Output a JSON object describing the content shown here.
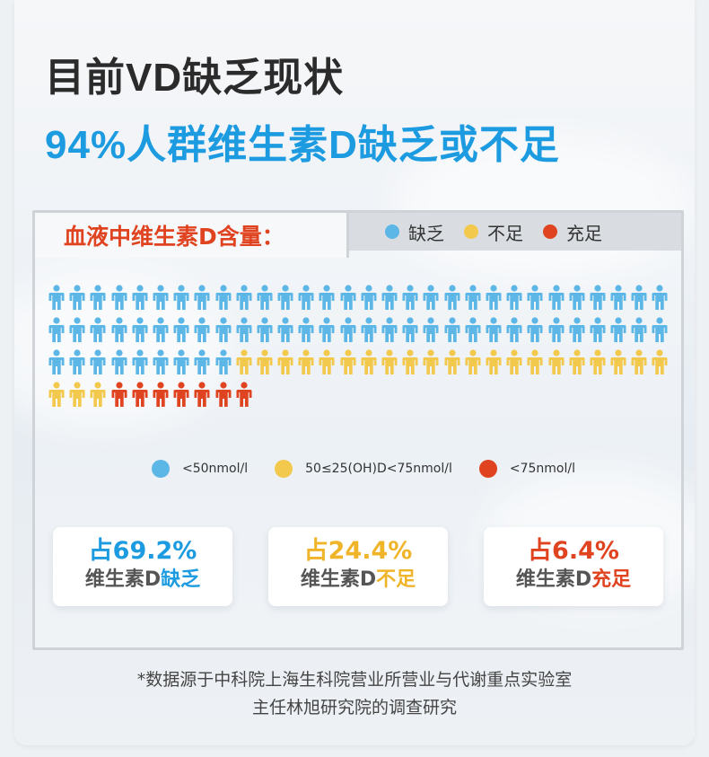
{
  "title": "目前VD缺乏现状",
  "subtitle": "94%人群维生素D缺乏或不足",
  "panel": {
    "heading": "血液中维生素D含量：",
    "legend": [
      {
        "label": "缺乏",
        "color": "#5cb6e6"
      },
      {
        "label": "不足",
        "color": "#f2c94c"
      },
      {
        "label": "充足",
        "color": "#e0431f"
      }
    ],
    "people": {
      "deficient": 69,
      "insufficient": 24,
      "sufficient": 7
    },
    "range_legend": [
      {
        "label": "<50nmol/l",
        "color": "#5cb6e6"
      },
      {
        "label": "50≤25(OH)D<75nmol/l",
        "color": "#f2c94c"
      },
      {
        "label": "<75nmol/l",
        "color": "#e0431f"
      }
    ],
    "stats": [
      {
        "pct": "占69.2%",
        "desc_prefix": "维生素D",
        "desc_highlight": "缺乏",
        "color": "#1d9be0"
      },
      {
        "pct": "占24.4%",
        "desc_prefix": "维生素D",
        "desc_highlight": "不足",
        "color": "#f0b429"
      },
      {
        "pct": "占6.4%",
        "desc_prefix": "维生素D",
        "desc_highlight": "充足",
        "color": "#e0431f"
      }
    ]
  },
  "footnote": {
    "line1": "*数据源于中科院上海生科院营业所营业与代谢重点实验室",
    "line2": "主任林旭研究院的调查研究"
  }
}
